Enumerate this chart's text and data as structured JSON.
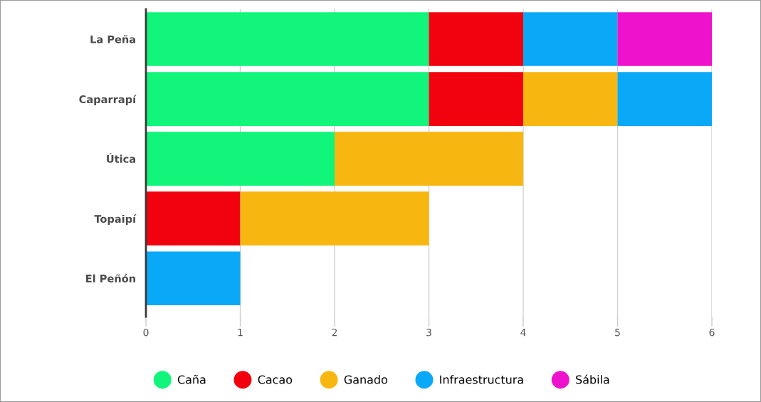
{
  "chart_data": {
    "type": "bar",
    "orientation": "horizontal",
    "stacked": true,
    "categories": [
      "La Peña",
      "Caparrapí",
      "Útica",
      "Topaipí",
      "El Peñón"
    ],
    "series": [
      {
        "name": "Caña",
        "color": "#10f57a",
        "values": [
          3,
          3,
          2,
          null,
          null
        ]
      },
      {
        "name": "Cacao",
        "color": "#f2020e",
        "values": [
          1,
          1,
          null,
          1,
          null
        ]
      },
      {
        "name": "Ganado",
        "color": "#f8b710",
        "values": [
          null,
          1,
          2,
          2,
          null
        ]
      },
      {
        "name": "Infraestructura",
        "color": "#0aa9f8",
        "values": [
          1,
          1,
          null,
          null,
          1
        ]
      },
      {
        "name": "Sábila",
        "color": "#ee12cc",
        "values": [
          1,
          null,
          null,
          null,
          null
        ]
      }
    ],
    "xlim": [
      0,
      6
    ],
    "xticks": [
      0,
      1,
      2,
      3,
      4,
      5,
      6
    ],
    "grid": "x",
    "legend": "bottom"
  }
}
